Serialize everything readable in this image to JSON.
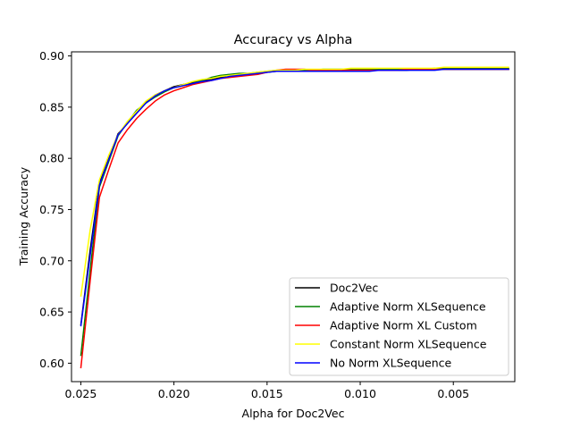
{
  "chart_data": {
    "type": "line",
    "title": "Accuracy vs Alpha",
    "xlabel": "Alpha for Doc2Vec",
    "ylabel": "Training Accuracy",
    "x_reversed": true,
    "xlim": [
      0.0255,
      0.0017
    ],
    "ylim": [
      0.582,
      0.904
    ],
    "xticks": [
      0.025,
      0.02,
      0.015,
      0.01,
      0.005
    ],
    "xtick_labels": [
      "0.025",
      "0.020",
      "0.015",
      "0.010",
      "0.005"
    ],
    "yticks": [
      0.6,
      0.65,
      0.7,
      0.75,
      0.8,
      0.85,
      0.9
    ],
    "ytick_labels": [
      "0.60",
      "0.65",
      "0.70",
      "0.75",
      "0.80",
      "0.85",
      "0.90"
    ],
    "grid": false,
    "legend_position": "lower-right",
    "x": [
      0.025,
      0.0245,
      0.024,
      0.0235,
      0.023,
      0.0225,
      0.022,
      0.0215,
      0.021,
      0.0205,
      0.02,
      0.0195,
      0.019,
      0.0185,
      0.018,
      0.0175,
      0.017,
      0.0165,
      0.016,
      0.0155,
      0.015,
      0.0145,
      0.014,
      0.0135,
      0.013,
      0.0125,
      0.012,
      0.0115,
      0.011,
      0.0105,
      0.01,
      0.0095,
      0.009,
      0.0085,
      0.008,
      0.0075,
      0.007,
      0.0065,
      0.006,
      0.0055,
      0.005,
      0.0045,
      0.004,
      0.0035,
      0.003,
      0.0025,
      0.002
    ],
    "series": [
      {
        "name": "Doc2Vec",
        "color": "#000000",
        "values": [
          0.637,
          0.71,
          0.776,
          0.8,
          0.824,
          0.834,
          0.845,
          0.855,
          0.862,
          0.866,
          0.87,
          0.872,
          0.874,
          0.876,
          0.877,
          0.879,
          0.88,
          0.881,
          0.882,
          0.883,
          0.884,
          0.885,
          0.886,
          0.886,
          0.886,
          0.886,
          0.886,
          0.886,
          0.886,
          0.886,
          0.886,
          0.886,
          0.886,
          0.886,
          0.886,
          0.886,
          0.887,
          0.887,
          0.887,
          0.887,
          0.887,
          0.887,
          0.887,
          0.887,
          0.887,
          0.887,
          0.887
        ]
      },
      {
        "name": "Adaptive Norm XLSequence",
        "color": "#008000",
        "values": [
          0.607,
          0.69,
          0.772,
          0.797,
          0.822,
          0.835,
          0.847,
          0.854,
          0.86,
          0.865,
          0.869,
          0.871,
          0.873,
          0.876,
          0.879,
          0.881,
          0.882,
          0.883,
          0.883,
          0.884,
          0.885,
          0.886,
          0.886,
          0.886,
          0.886,
          0.886,
          0.887,
          0.887,
          0.887,
          0.887,
          0.887,
          0.887,
          0.887,
          0.887,
          0.887,
          0.887,
          0.887,
          0.887,
          0.888,
          0.888,
          0.888,
          0.888,
          0.888,
          0.888,
          0.888,
          0.888,
          0.888
        ]
      },
      {
        "name": "Adaptive Norm XL Custom",
        "color": "#ff0000",
        "values": [
          0.595,
          0.68,
          0.762,
          0.789,
          0.815,
          0.828,
          0.839,
          0.848,
          0.856,
          0.862,
          0.866,
          0.869,
          0.872,
          0.874,
          0.876,
          0.878,
          0.879,
          0.88,
          0.881,
          0.882,
          0.884,
          0.886,
          0.887,
          0.887,
          0.887,
          0.886,
          0.886,
          0.886,
          0.886,
          0.886,
          0.886,
          0.886,
          0.886,
          0.886,
          0.886,
          0.887,
          0.887,
          0.887,
          0.887,
          0.887,
          0.887,
          0.887,
          0.887,
          0.887,
          0.887,
          0.887,
          0.887
        ]
      },
      {
        "name": "Constant Norm XLSequence",
        "color": "#ffff00",
        "values": [
          0.665,
          0.73,
          0.779,
          0.803,
          0.823,
          0.836,
          0.846,
          0.856,
          0.862,
          0.866,
          0.869,
          0.872,
          0.875,
          0.877,
          0.878,
          0.88,
          0.881,
          0.882,
          0.883,
          0.884,
          0.885,
          0.886,
          0.886,
          0.886,
          0.887,
          0.887,
          0.887,
          0.887,
          0.887,
          0.888,
          0.888,
          0.888,
          0.888,
          0.888,
          0.888,
          0.888,
          0.888,
          0.888,
          0.888,
          0.889,
          0.889,
          0.889,
          0.889,
          0.889,
          0.889,
          0.889,
          0.889
        ]
      },
      {
        "name": "No Norm XLSequence",
        "color": "#0000ff",
        "values": [
          0.636,
          0.705,
          0.774,
          0.799,
          0.823,
          0.834,
          0.844,
          0.854,
          0.861,
          0.866,
          0.869,
          0.871,
          0.873,
          0.875,
          0.876,
          0.878,
          0.88,
          0.881,
          0.882,
          0.883,
          0.884,
          0.885,
          0.885,
          0.885,
          0.885,
          0.885,
          0.885,
          0.885,
          0.885,
          0.885,
          0.885,
          0.885,
          0.886,
          0.886,
          0.886,
          0.886,
          0.886,
          0.886,
          0.886,
          0.887,
          0.887,
          0.887,
          0.887,
          0.887,
          0.887,
          0.887,
          0.887
        ]
      }
    ]
  }
}
